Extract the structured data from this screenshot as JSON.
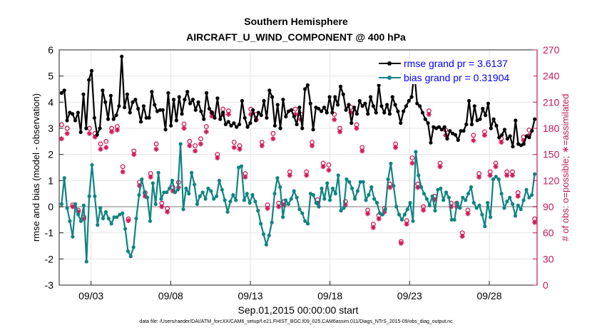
{
  "chart_data": {
    "type": "line",
    "title": "Southern Hemisphere",
    "subtitle": "AIRCRAFT_U_WIND_COMPONENT @ 400 hPa",
    "xlabel": "Sep.01,2015 00:00:00 start",
    "ylabel_left": "rmse and bias (model - observation)",
    "ylabel_right": "# of obs: o=possible; ∗=assimilated",
    "x_ticks": [
      "09/03",
      "09/08",
      "09/13",
      "09/18",
      "09/23",
      "09/28"
    ],
    "x_tick_days": [
      3,
      8,
      13,
      18,
      23,
      28
    ],
    "x_range_days": [
      1.0,
      31.0
    ],
    "y_left_ticks": [
      "6",
      "5",
      "4",
      "3",
      "2",
      "1",
      "0",
      "-1",
      "-2",
      "-3"
    ],
    "ylim_left": [
      -3,
      6
    ],
    "y_right_ticks": [
      "270",
      "240",
      "210",
      "180",
      "150",
      "120",
      "90",
      "60",
      "30",
      "0"
    ],
    "ylim_right": [
      0,
      270
    ],
    "legend": [
      {
        "name": "rmse grand pr = 3.6137",
        "color": "#000000"
      },
      {
        "name": "bias grand pr = 0.31904",
        "color": "#008080"
      }
    ],
    "colors": {
      "rmse": "#000000",
      "bias": "#0f8482",
      "obs": "#d01c5c",
      "axis_right": "#c2185b",
      "legend_text": "#0000ff",
      "zero_line": "#bbbbbb"
    },
    "rmse": [
      4.35,
      4.45,
      3.3,
      3.6,
      3.55,
      3.3,
      3.6,
      2.85,
      4.3,
      3.0,
      4.85,
      5.2,
      3.4,
      2.75,
      3.0,
      4.45,
      4.0,
      3.35,
      4.25,
      3.35,
      3.5,
      3.85,
      5.75,
      3.8,
      4.3,
      3.6,
      4.0,
      4.1,
      3.75,
      3.25,
      3.85,
      3.4,
      3.4,
      4.4,
      3.9,
      3.65,
      3.7,
      3.7,
      2.95,
      4.35,
      3.1,
      4.1,
      3.3,
      4.2,
      3.55,
      4.1,
      4.4,
      3.95,
      4.1,
      3.7,
      4.0,
      3.65,
      3.35,
      4.35,
      3.75,
      3.6,
      3.4,
      4.15,
      3.35,
      3.6,
      3.15,
      3.25,
      3.1,
      3.2,
      3.05,
      3.15,
      4.05,
      3.4,
      3.05,
      3.2,
      3.7,
      3.3,
      3.6,
      3.5,
      4.05,
      3.4,
      4.45,
      4.2,
      3.1,
      3.9,
      3.0,
      4.1,
      3.45,
      3.65,
      3.7,
      3.45,
      3.15,
      3.8,
      3.0,
      4.5,
      4.65,
      3.95,
      2.95,
      3.8,
      3.75,
      3.65,
      3.8,
      3.6,
      4.2,
      3.6,
      4.2,
      3.9,
      4.6,
      4.3,
      3.7,
      3.9,
      3.2,
      3.8,
      3.55,
      4.05,
      3.85,
      3.95,
      3.55,
      4.2,
      3.85,
      3.6,
      4.65,
      3.85,
      3.6,
      3.9,
      3.55,
      4.2,
      3.9,
      3.65,
      3.2,
      3.65,
      3.85,
      4.05,
      4.2,
      5.15,
      3.95,
      3.85,
      3.6,
      3.35,
      3.2,
      2.45,
      3.05,
      3.0,
      3.05,
      2.95,
      3.05,
      2.6,
      2.9,
      2.8,
      2.75,
      2.55,
      2.9,
      2.9,
      3.15,
      4.05,
      3.15,
      3.85,
      3.3,
      3.35,
      3.75,
      3.5,
      3.95,
      3.0,
      3.35,
      3.1,
      2.65,
      2.75,
      2.95,
      2.6,
      2.7,
      2.3,
      3.3,
      2.4,
      2.35,
      2.4,
      2.7,
      2.65,
      2.9,
      3.35
    ],
    "bias": [
      0.1,
      1.1,
      -0.05,
      -0.55,
      -1.15,
      0.1,
      -0.3,
      -0.55,
      0.05,
      -2.1,
      0.4,
      1.6,
      0.4,
      -0.7,
      -0.05,
      -0.45,
      -0.2,
      -0.45,
      -0.65,
      -0.4,
      -0.4,
      -0.3,
      -0.25,
      -0.85,
      -1.7,
      -1.9,
      -1.55,
      -0.45,
      0.45,
      1.05,
      0.55,
      0.35,
      -0.55,
      0.9,
      0.1,
      1.3,
      0.3,
      0.55,
      0.55,
      0.7,
      1.0,
      0.55,
      0.65,
      2.4,
      -0.1,
      0.7,
      0.5,
      1.3,
      0.85,
      0.1,
      0.4,
      0.55,
      0.3,
      0.7,
      0.6,
      0.3,
      0.4,
      1.0,
      0.65,
      0.25,
      -0.2,
      0.2,
      0.45,
      0.25,
      1.5,
      1.55,
      0.25,
      0.5,
      0.15,
      0.45,
      0.2,
      -0.15,
      -0.65,
      -1.05,
      -1.45,
      -1.1,
      -0.6,
      0.5,
      1.1,
      0.75,
      -0.4,
      0.25,
      0.1,
      0.3,
      0.6,
      0.35,
      -0.1,
      -0.25,
      -0.55,
      -0.65,
      0.5,
      0.45,
      0.15,
      0.0,
      0.7,
      0.3,
      0.9,
      0.25,
      0.7,
      0.5,
      1.2,
      -0.15,
      -0.05,
      1.05,
      0.95,
      0.7,
      0.3,
      0.6,
      0.95,
      0.95,
      0.25,
      0.45,
      0.75,
      0.3,
      0.15,
      -0.25,
      -0.3,
      -0.1,
      1.05,
      1.65,
      0.8,
      0.0,
      -0.3,
      -0.5,
      -0.3,
      -0.1,
      0.15,
      -0.55,
      2.1,
      1.2,
      0.75,
      0.5,
      0.3,
      0.05,
      0.4,
      -0.15,
      0.65,
      0.7,
      0.25,
      0.55,
      0.35,
      -0.5,
      -0.5,
      0.15,
      -0.05,
      0.35,
      0.25,
      0.5,
      0.75,
      0.15,
      -0.05,
      0.05,
      -0.3,
      -0.75,
      0.15,
      -0.4,
      1.05,
      1.15,
      1.05,
      0.5,
      -0.05,
      0.2,
      0.35,
      0.1,
      -0.35,
      0.05,
      -0.1,
      0.25,
      0.65,
      0.35,
      0.45,
      1.25
    ],
    "obs_possible": [
      184,
      180,
      92,
      86,
      78,
      180,
      174,
      162,
      165,
      180,
      182,
      136,
      76,
      154,
      118,
      106,
      128,
      162,
      94,
      88,
      112,
      118,
      185,
      165,
      160,
      168,
      182,
      198,
      150,
      202,
      200,
      164,
      160,
      128,
      202,
      196,
      164,
      92,
      174,
      94,
      96,
      130,
      202,
      196,
      130,
      164,
      98,
      140,
      138,
      196,
      180,
      96,
      204,
      184,
      158,
      86,
      70,
      80,
      88,
      116,
      162,
      50,
      74,
      146,
      116,
      90,
      200,
      102,
      140,
      178,
      94,
      94,
      60,
      86,
      172,
      128,
      176,
      130,
      140,
      168,
      130,
      130,
      106,
      170,
      178,
      76
    ],
    "obs_assimilated": [
      168,
      174,
      90,
      84,
      76,
      174,
      170,
      156,
      158,
      176,
      178,
      130,
      74,
      150,
      114,
      102,
      124,
      156,
      90,
      84,
      108,
      112,
      180,
      160,
      154,
      162,
      176,
      194,
      146,
      196,
      196,
      158,
      156,
      124,
      196,
      190,
      160,
      88,
      168,
      90,
      92,
      126,
      196,
      190,
      126,
      160,
      94,
      136,
      132,
      190,
      176,
      92,
      198,
      180,
      154,
      82,
      66,
      76,
      84,
      112,
      158,
      48,
      70,
      140,
      112,
      86,
      196,
      98,
      136,
      172,
      90,
      90,
      56,
      82,
      166,
      124,
      172,
      126,
      136,
      164,
      126,
      126,
      102,
      166,
      172,
      72
    ]
  },
  "footnote": "data file: /Users/raeder/DAI/ATM_forcXX/CAM6_setup/f.e21.FHIST_BGC.f09_025.CAM6assim.011/Diags_NTrS_2015-09/obs_diag_output.nc"
}
